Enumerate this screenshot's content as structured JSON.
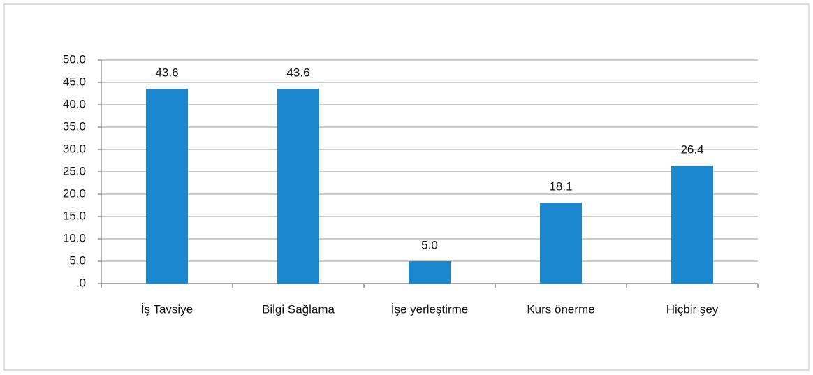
{
  "chart_data": {
    "type": "bar",
    "categories": [
      "İş Tavsiye",
      "Bilgi Sağlama",
      "İşe yerleştirme",
      "Kurs önerme",
      "Hiçbir şey"
    ],
    "values": [
      43.6,
      43.6,
      5,
      18.1,
      26.4
    ],
    "value_labels": [
      "43.6",
      "43.6",
      "5.0",
      "18.1",
      "26.4"
    ],
    "color": "#1a87cf",
    "ylim": [
      0,
      50
    ],
    "yticks": [
      {
        "value": 0,
        "label": ".0"
      },
      {
        "value": 5,
        "label": "5.0"
      },
      {
        "value": 10,
        "label": "10.0"
      },
      {
        "value": 15,
        "label": "15.0"
      },
      {
        "value": 20,
        "label": "20.0"
      },
      {
        "value": 25,
        "label": "25.0"
      },
      {
        "value": 30,
        "label": "30.0"
      },
      {
        "value": 35,
        "label": "35.0"
      },
      {
        "value": 40,
        "label": "40.0"
      },
      {
        "value": 45,
        "label": "45.0"
      },
      {
        "value": 50,
        "label": "50.0"
      }
    ],
    "grid": true
  }
}
